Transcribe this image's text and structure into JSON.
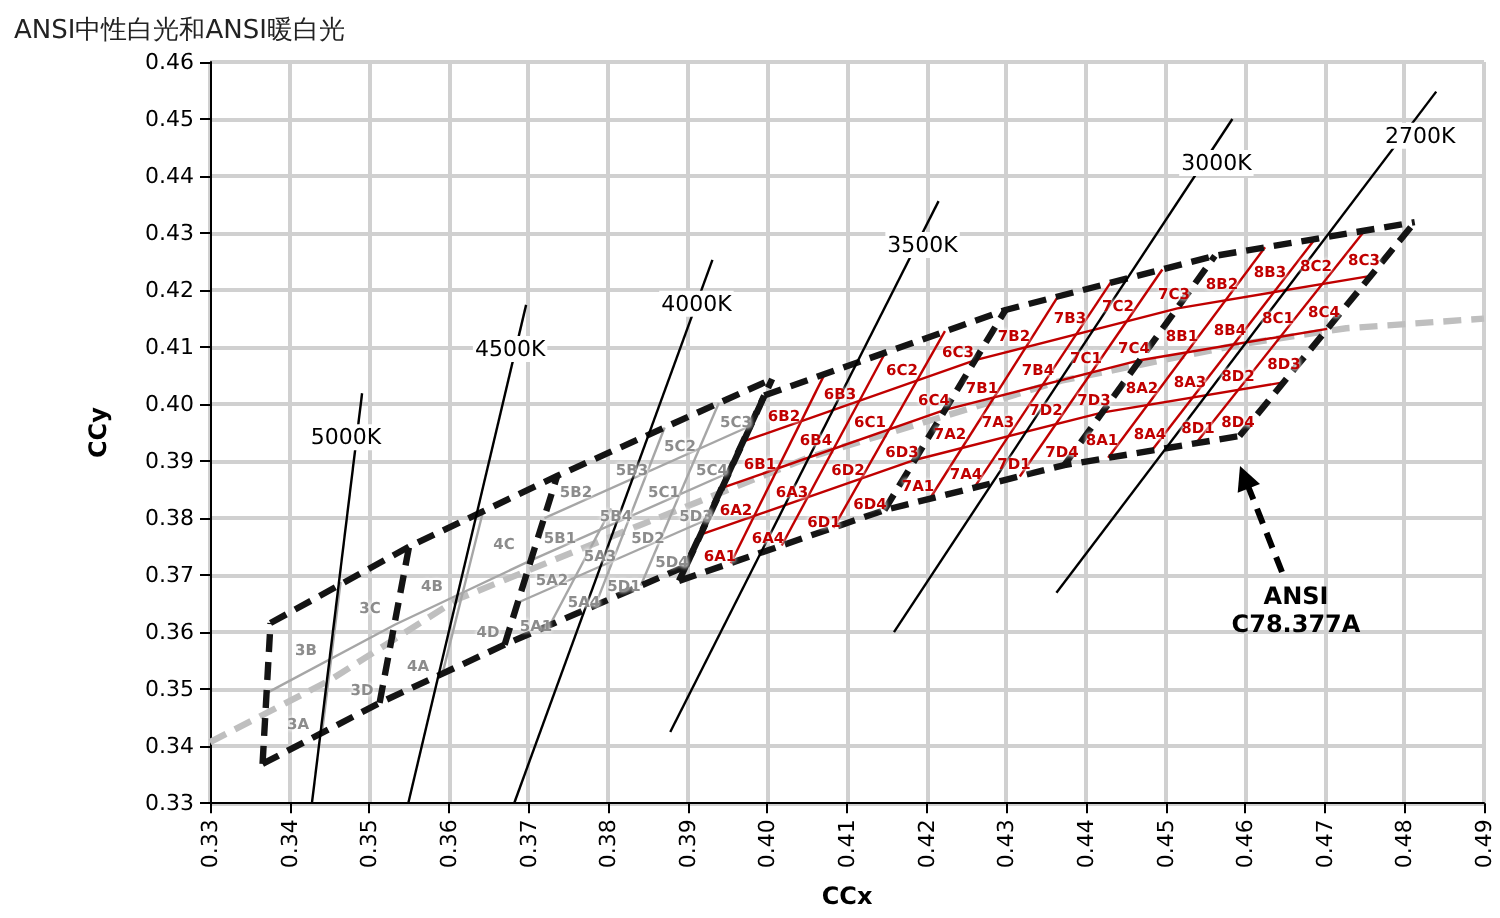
{
  "chart_data": {
    "type": "line",
    "title": "ANSI中性白光和ANSI暖白光",
    "xlabel": "CCx",
    "ylabel": "CCy",
    "xlim": [
      0.33,
      0.49
    ],
    "ylim": [
      0.33,
      0.46
    ],
    "xticks": [
      0.33,
      0.34,
      0.35,
      0.36,
      0.37,
      0.38,
      0.39,
      {
        "value": 0.4,
        "label": "0.40"
      },
      0.41,
      0.42,
      0.43,
      0.44,
      0.45,
      0.46,
      0.47,
      0.48,
      0.49
    ],
    "yticks": [
      0.33,
      0.34,
      0.35,
      0.36,
      0.37,
      0.38,
      0.39,
      {
        "value": 0.4,
        "label": "0.40"
      },
      0.41,
      0.42,
      0.43,
      0.44,
      0.45,
      0.46
    ],
    "grid": true,
    "legend": false,
    "marker": "none",
    "annotations": [
      "ANSI C78.377A",
      "3A",
      "3B",
      "3C",
      "3D",
      "4A",
      "4B",
      "4C",
      "4D",
      "5A1",
      "5A2",
      "5A3",
      "5A4",
      "5B1",
      "5B2",
      "5B3",
      "5B4",
      "5C1",
      "5C2",
      "5C3",
      "5C4",
      "5D1",
      "5D2",
      "5D3",
      "5D4",
      "6A1",
      "6A2",
      "6A3",
      "6A4",
      "6B1",
      "6B2",
      "6B3",
      "6B4",
      "6C1",
      "6C2",
      "6C3",
      "6C4",
      "6D1",
      "6D2",
      "6D3",
      "6D4",
      "7A1",
      "7A2",
      "7A3",
      "7A4",
      "7B1",
      "7B2",
      "7B3",
      "7B4",
      "7C1",
      "7C2",
      "7C3",
      "7C4",
      "7D1",
      "7D2",
      "7D3",
      "7D4",
      "8A1",
      "8A2",
      "8A3",
      "8A4",
      "8B1",
      "8B2",
      "8B3",
      "8B4",
      "8C1",
      "8C2",
      "8C3",
      "8C4",
      "8D1",
      "8D2",
      "8D3",
      "8D4"
    ],
    "series": [
      {
        "color": "#bfbfbf",
        "line_style": "dashed",
        "x": [
          0.33,
          0.3451,
          0.3611,
          0.3805,
          0.4053,
          0.4369,
          0.4599,
          0.4727,
          0.49
        ],
        "values": [
          0.3407,
          0.3516,
          0.3658,
          0.3768,
          0.3907,
          0.4041,
          0.4106,
          0.4133,
          0.415
        ]
      },
      {
        "color": "#a6a6a6",
        "line_style": "solid",
        "x": [
          0.3441,
          0.3464
        ],
        "values": [
          0.3428,
          0.3688
        ]
      },
      {
        "color": "#a6a6a6",
        "line_style": "solid",
        "x": [
          0.3371,
          0.3532,
          0.3703,
          0.3952
        ],
        "values": [
          0.3493,
          0.3613,
          0.3726,
          0.388
        ]
      },
      {
        "color": "#a6a6a6",
        "line_style": "solid",
        "x": [
          0.3591,
          0.3643
        ],
        "values": [
          0.3522,
          0.3812
        ]
      },
      {
        "color": "#a6a6a6",
        "line_style": "solid",
        "x": [
          0.3727,
          0.3804
        ],
        "values": [
          0.3613,
          0.3817
        ]
      },
      {
        "color": "#a6a6a6",
        "line_style": "solid",
        "x": [
          0.3784,
          0.3871
        ],
        "values": [
          0.3647,
          0.3959
        ]
      },
      {
        "color": "#a6a6a6",
        "line_style": "solid",
        "x": [
          0.3841,
          0.3939
        ],
        "values": [
          0.3682,
          0.4002
        ]
      },
      {
        "color": "#a6a6a6",
        "line_style": "solid",
        "x": [
          0.3687,
          0.3925
        ],
        "values": [
          0.3652,
          0.3798
        ]
      },
      {
        "color": "#a6a6a6",
        "line_style": "solid",
        "x": [
          0.372,
          0.3979
        ],
        "values": [
          0.38,
          0.3962
        ]
      },
      {
        "color": "#c00000",
        "line_style": "solid",
        "x": [
          0.3954,
          0.4072
        ],
        "values": [
          0.3721,
          0.4053
        ]
      },
      {
        "color": "#c00000",
        "line_style": "solid",
        "x": [
          0.4018,
          0.4148
        ],
        "values": [
          0.3752,
          0.409
        ]
      },
      {
        "color": "#c00000",
        "line_style": "solid",
        "x": [
          0.4083,
          0.4223
        ],
        "values": [
          0.3783,
          0.4128
        ]
      },
      {
        "color": "#c00000",
        "line_style": "solid",
        "x": [
          0.4204,
          0.4365
        ],
        "values": [
          0.3834,
          0.4189
        ]
      },
      {
        "color": "#c00000",
        "line_style": "solid",
        "x": [
          0.426,
          0.4431
        ],
        "values": [
          0.3854,
          0.4213
        ]
      },
      {
        "color": "#c00000",
        "line_style": "solid",
        "x": [
          0.4317,
          0.4496
        ],
        "values": [
          0.3873,
          0.4236
        ]
      },
      {
        "color": "#c00000",
        "line_style": "solid",
        "x": [
          0.4428,
          0.4625
        ],
        "values": [
          0.3906,
          0.4275
        ]
      },
      {
        "color": "#c00000",
        "line_style": "solid",
        "x": [
          0.4483,
          0.4688
        ],
        "values": [
          0.3919,
          0.429
        ]
      },
      {
        "color": "#c00000",
        "line_style": "solid",
        "x": [
          0.4538,
          0.475
        ],
        "values": [
          0.3931,
          0.4304
        ]
      },
      {
        "color": "#c00000",
        "line_style": "solid",
        "x": [
          0.3916,
          0.4185,
          0.442,
          0.4648
        ],
        "values": [
          0.3771,
          0.3902,
          0.3985,
          0.4038
        ]
      },
      {
        "color": "#c00000",
        "line_style": "solid",
        "x": [
          0.3943,
          0.4223,
          0.4468,
          0.4703
        ],
        "values": [
          0.3853,
          0.399,
          0.4077,
          0.4132
        ]
      },
      {
        "color": "#c00000",
        "line_style": "solid",
        "x": [
          0.3969,
          0.4261,
          0.4515,
          0.4758
        ],
        "values": [
          0.3934,
          0.4077,
          0.4168,
          0.4225
        ]
      },
      {
        "color": "#141414",
        "line_style": "dashed",
        "x": [
          0.3376,
          0.355,
          0.3736,
          0.4006
        ],
        "values": [
          0.3616,
          0.375,
          0.3874,
          0.4044
        ]
      },
      {
        "color": "#141414",
        "line_style": "dashed",
        "x": [
          0.3366,
          0.3513,
          0.367,
          0.3898
        ],
        "values": [
          0.3369,
          0.3476,
          0.3578,
          0.3716
        ]
      },
      {
        "color": "#141414",
        "line_style": "dashed",
        "x": [
          0.3366,
          0.3376
        ],
        "values": [
          0.3369,
          0.3616
        ]
      },
      {
        "color": "#141414",
        "line_style": "dashed",
        "x": [
          0.3513,
          0.355
        ],
        "values": [
          0.3476,
          0.375
        ]
      },
      {
        "color": "#141414",
        "line_style": "dashed",
        "x": [
          0.367,
          0.3736
        ],
        "values": [
          0.3578,
          0.3874
        ]
      },
      {
        "color": "#141414",
        "line_style": "dashed",
        "x": [
          0.3898,
          0.4006
        ],
        "values": [
          0.3716,
          0.4044
        ]
      },
      {
        "color": "#141414",
        "line_style": "dashed",
        "x": [
          0.3996,
          0.4299,
          0.4562,
          0.4813
        ],
        "values": [
          0.4015,
          0.4165,
          0.426,
          0.4319
        ]
      },
      {
        "color": "#141414",
        "line_style": "dashed",
        "x": [
          0.3889,
          0.4147,
          0.4373,
          0.4593
        ],
        "values": [
          0.369,
          0.3814,
          0.3893,
          0.3944
        ]
      },
      {
        "color": "#141414",
        "line_style": "dashed",
        "x": [
          0.3889,
          0.3996
        ],
        "values": [
          0.369,
          0.4015
        ]
      },
      {
        "color": "#141414",
        "line_style": "dashed",
        "x": [
          0.4147,
          0.4299
        ],
        "values": [
          0.3814,
          0.4165
        ]
      },
      {
        "color": "#141414",
        "line_style": "dashed",
        "x": [
          0.4373,
          0.4562
        ],
        "values": [
          0.3893,
          0.426
        ]
      },
      {
        "color": "#141414",
        "line_style": "dashed",
        "x": [
          0.4593,
          0.4813
        ],
        "values": [
          0.3944,
          0.4319
        ]
      },
      {
        "name": "5000K",
        "color": "#000000",
        "line_style": "solid",
        "x": [
          0.3428,
          0.3491
        ],
        "values": [
          0.33,
          0.4019
        ]
      },
      {
        "name": "4500K",
        "color": "#000000",
        "line_style": "solid",
        "x": [
          0.3549,
          0.3697
        ],
        "values": [
          0.33,
          0.4174
        ]
      },
      {
        "name": "4000K",
        "color": "#000000",
        "line_style": "solid",
        "x": [
          0.3682,
          0.3931
        ],
        "values": [
          0.33,
          0.4253
        ]
      },
      {
        "name": "3500K",
        "color": "#000000",
        "line_style": "solid",
        "x": [
          0.3878,
          0.4215
        ],
        "values": [
          0.3425,
          0.4356
        ]
      },
      {
        "name": "3000K",
        "color": "#000000",
        "line_style": "solid",
        "x": [
          0.4159,
          0.4584
        ],
        "values": [
          0.36,
          0.45
        ]
      },
      {
        "name": "2700K",
        "color": "#000000",
        "line_style": "solid",
        "x": [
          0.4363,
          0.484
        ],
        "values": [
          0.3669,
          0.4548
        ]
      }
    ]
  }
}
